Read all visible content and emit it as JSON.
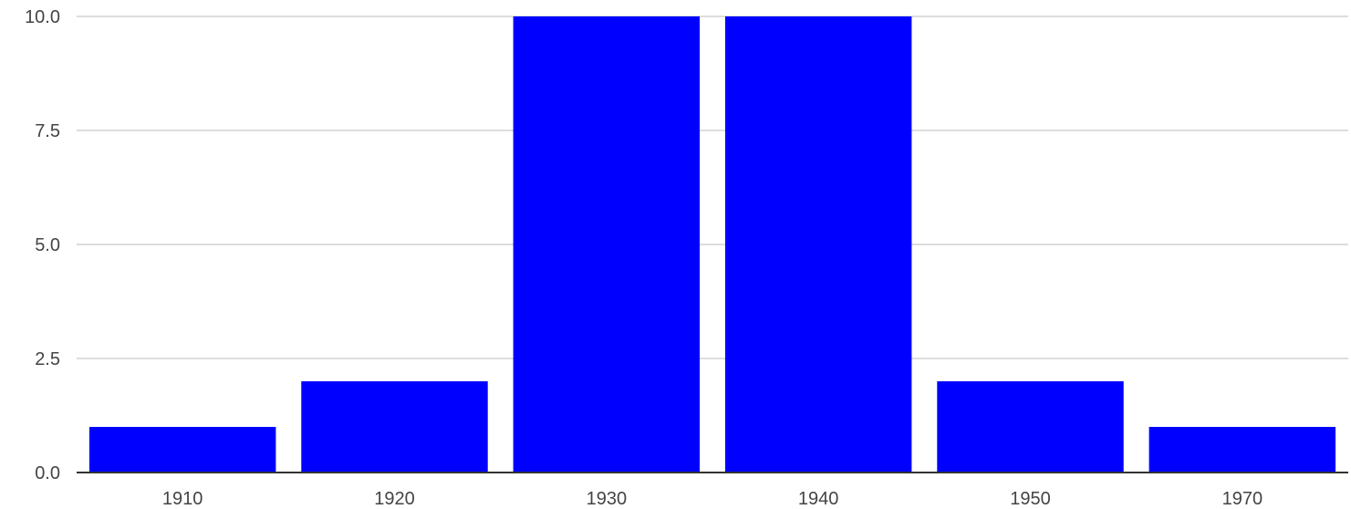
{
  "chart_data": {
    "type": "bar",
    "title": "",
    "xlabel": "",
    "ylabel": "",
    "categories": [
      "1910",
      "1920",
      "1930",
      "1940",
      "1950",
      "1970"
    ],
    "values": [
      1,
      2,
      10,
      10,
      2,
      1
    ],
    "ylim": [
      0,
      10
    ],
    "yticks": [
      "0.0",
      "2.5",
      "5.0",
      "7.5",
      "10.0"
    ],
    "grid": true,
    "legend": "none",
    "colors": {
      "bar": "#0000ff",
      "grid": "#dddddd",
      "axis": "#333333",
      "text": "#444444"
    }
  }
}
